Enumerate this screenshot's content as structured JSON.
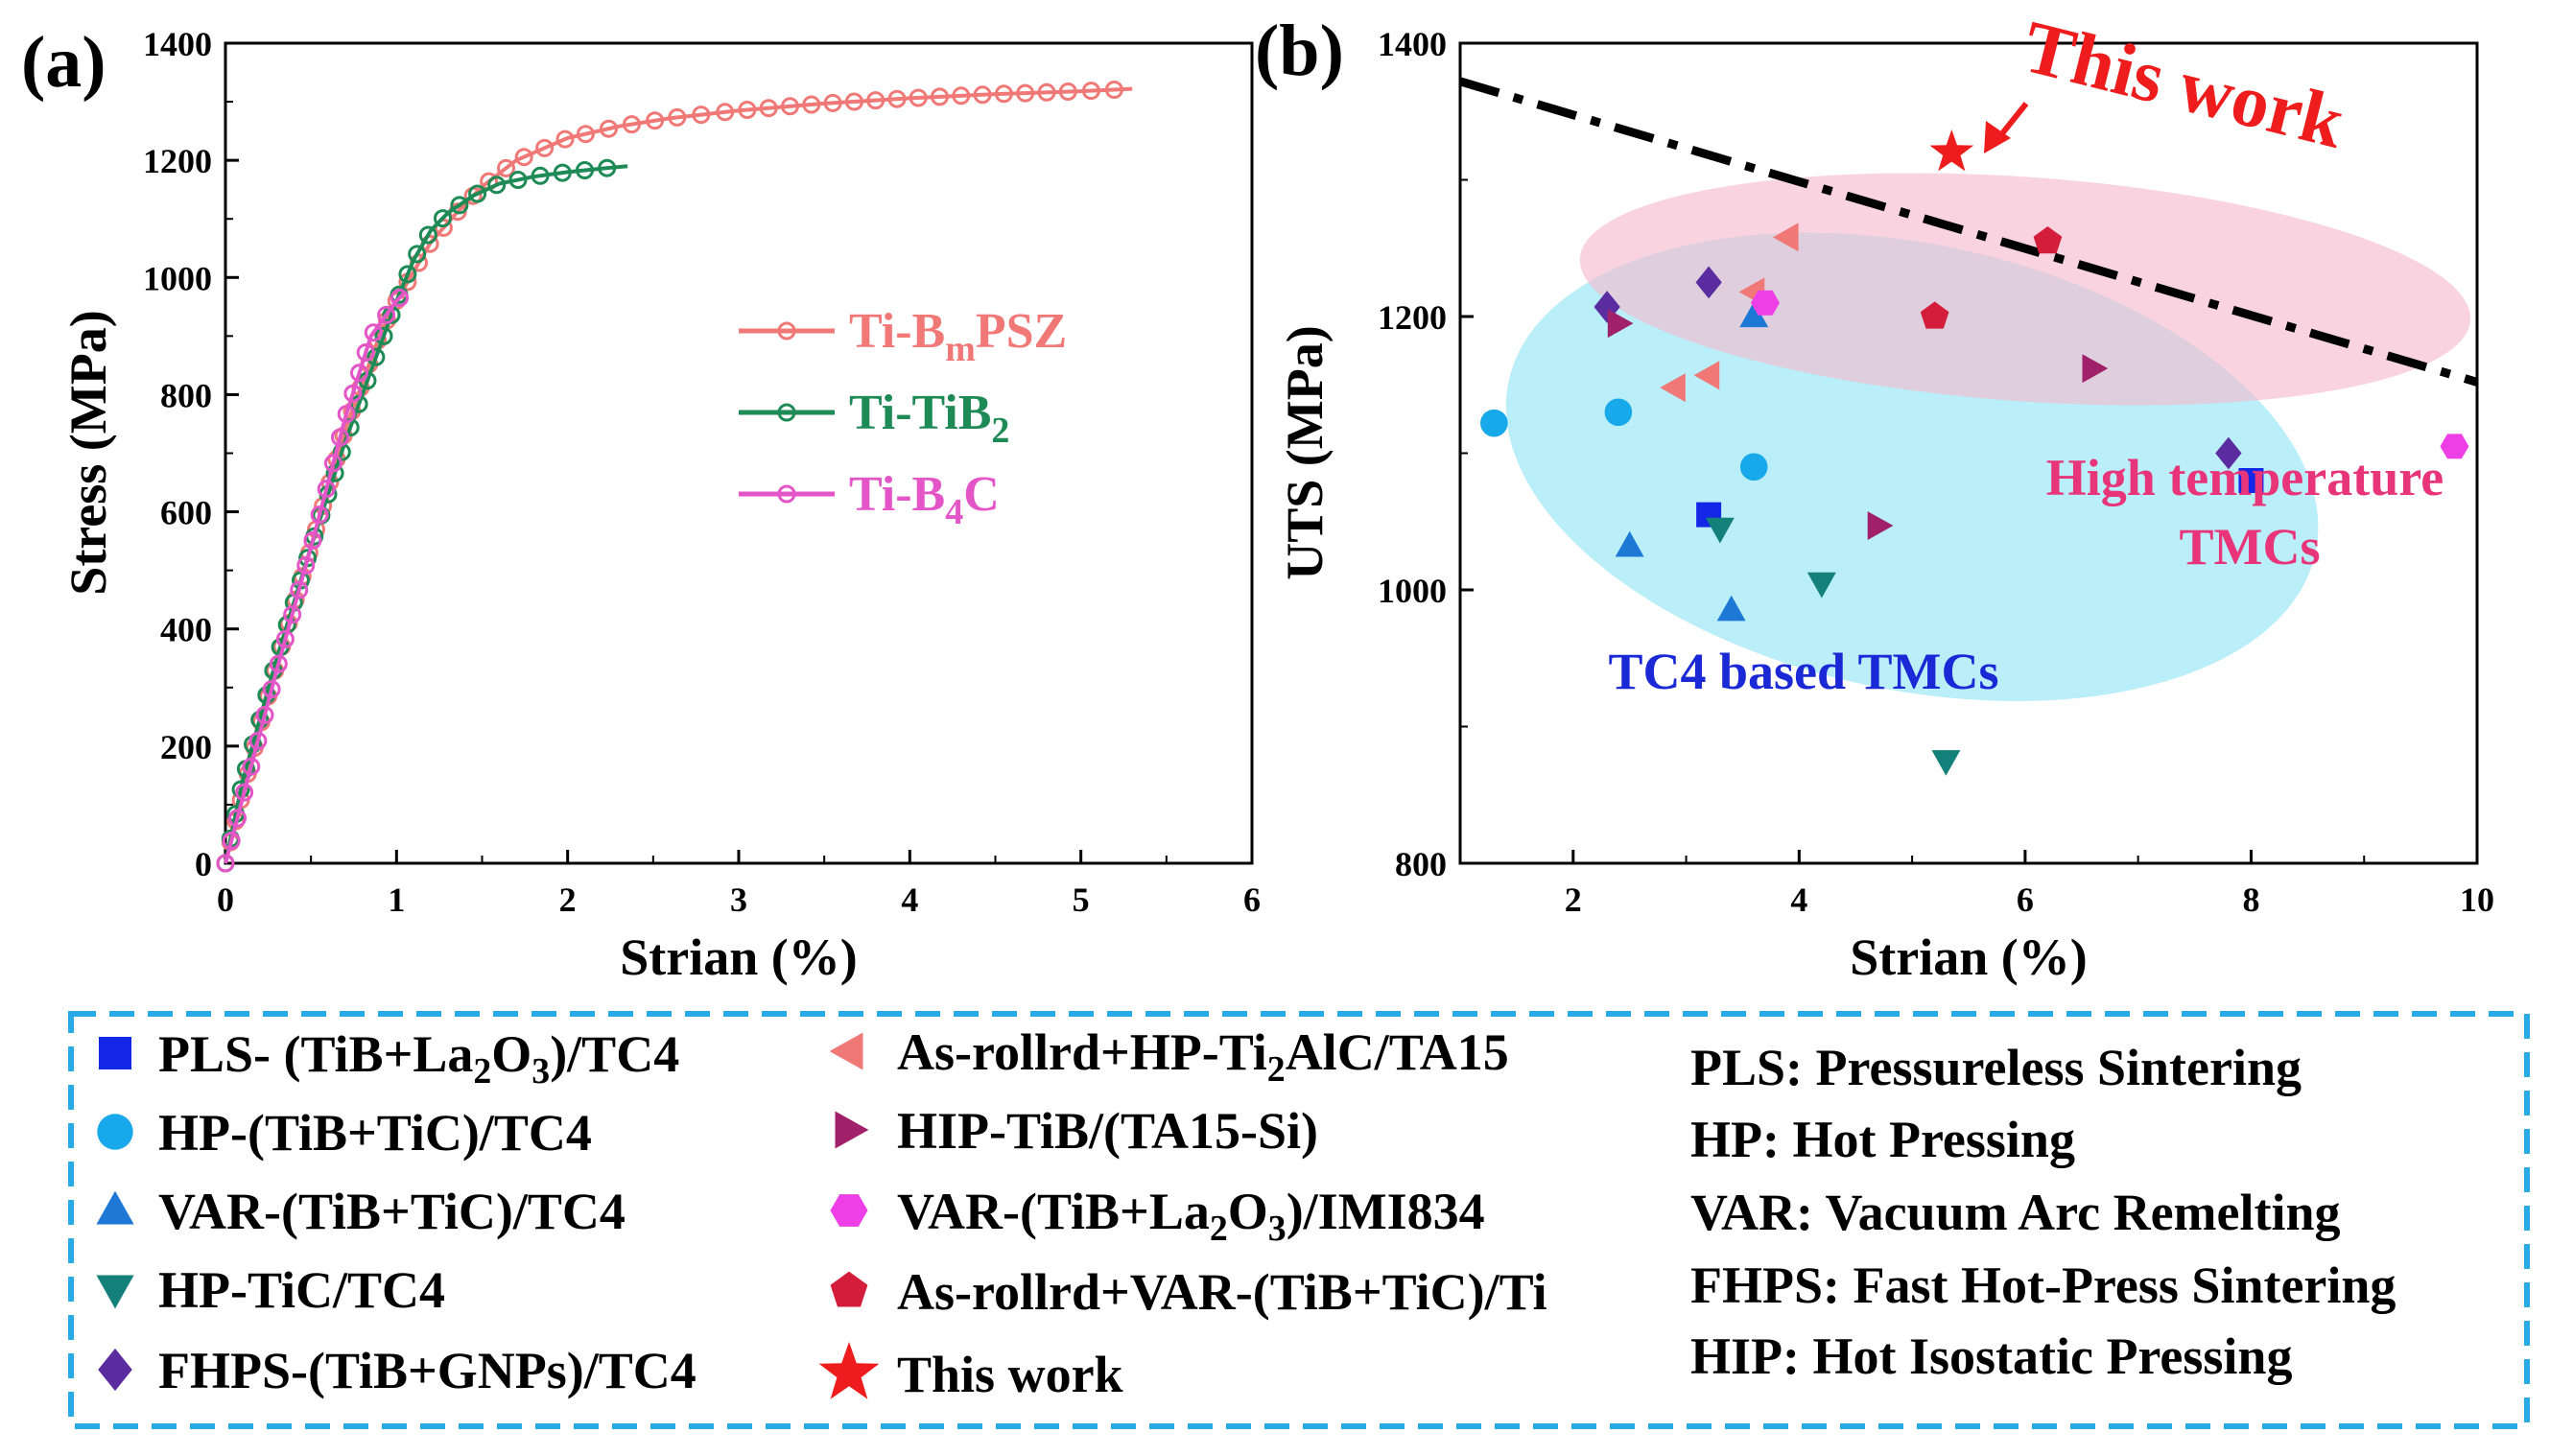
{
  "colors": {
    "ti_bmpsz": "#f07876",
    "ti_tib2": "#1e8a55",
    "ti_b4c": "#e455c8",
    "blue_square": "#1427e6",
    "cyan_circle": "#17a9ea",
    "tri_up": "#1d78d6",
    "tri_down": "#14807a",
    "diamond": "#5a2ca0",
    "tri_left": "#f07876",
    "tri_right": "#a0206a",
    "hexagon": "#ee3ee6",
    "pentagon": "#d41d3a",
    "star": "#ee1c1c",
    "ellipse_cyan": "#8fe3f3",
    "ellipse_pink": "#f6b9cd",
    "legend_border": "#29a9e6",
    "label_pink": "#e8357a",
    "label_blue": "#1a28d6"
  },
  "chart_data": [
    {
      "panel": "(a)",
      "type": "line",
      "title": "",
      "xlabel": "Strian (%)",
      "ylabel": "Stress (MPa)",
      "xlim": [
        0,
        6
      ],
      "ylim": [
        0,
        1400
      ],
      "xticks": [
        "0",
        "1",
        "2",
        "3",
        "4",
        "5",
        "6"
      ],
      "yticks": [
        "0",
        "200",
        "400",
        "600",
        "800",
        "1000",
        "1200",
        "1400"
      ],
      "legend": [
        {
          "key": "ti_bmpsz",
          "text": "Ti-B",
          "sub": "m",
          "tail": "PSZ"
        },
        {
          "key": "ti_tib2",
          "text": "Ti-TiB",
          "sub": "2",
          "tail": ""
        },
        {
          "key": "ti_b4c",
          "text": "Ti-B",
          "sub": "4",
          "tail": "C"
        }
      ],
      "series": [
        {
          "name": "Ti-BmPSZ",
          "color_key": "ti_bmpsz",
          "x": [
            0,
            0.1,
            0.3,
            0.5,
            0.7,
            0.9,
            1.0,
            1.1,
            1.2,
            1.35,
            1.5,
            1.7,
            2.0,
            2.3,
            2.6,
            3.0,
            3.5,
            4.0,
            4.5,
            5.0,
            5.3
          ],
          "y": [
            0,
            120,
            340,
            540,
            740,
            900,
            960,
            1010,
            1060,
            1110,
            1155,
            1200,
            1238,
            1258,
            1272,
            1285,
            1297,
            1306,
            1313,
            1318,
            1322
          ]
        },
        {
          "name": "Ti-TiB2",
          "color_key": "ti_tib2",
          "x": [
            0,
            0.1,
            0.3,
            0.5,
            0.7,
            0.9,
            1.0,
            1.1,
            1.2,
            1.3,
            1.45,
            1.6,
            1.8,
            2.0,
            2.2,
            2.35
          ],
          "y": [
            0,
            140,
            350,
            540,
            720,
            880,
            960,
            1030,
            1080,
            1110,
            1140,
            1160,
            1172,
            1180,
            1186,
            1190
          ]
        },
        {
          "name": "Ti-B4C",
          "color_key": "ti_b4c",
          "x": [
            0,
            0.1,
            0.3,
            0.5,
            0.7,
            0.85,
            1.0,
            1.05
          ],
          "y": [
            0,
            110,
            330,
            540,
            760,
            900,
            960,
            975
          ]
        }
      ]
    },
    {
      "panel": "(b)",
      "type": "scatter",
      "title": "",
      "xlabel": "Strian (%)",
      "ylabel": "UTS (MPa)",
      "xlim": [
        1.0,
        10.0
      ],
      "ylim": [
        800,
        1400
      ],
      "xticks": [
        "2",
        "4",
        "6",
        "8",
        "10"
      ],
      "yticks": [
        "800",
        "1000",
        "1200",
        "1400"
      ],
      "points": [
        {
          "series": "PLS- (TiB+La2O3)/TC4",
          "marker": "square",
          "color_key": "blue_square",
          "x": 3.2,
          "y": 1055
        },
        {
          "series": "PLS- (TiB+La2O3)/TC4",
          "marker": "square",
          "color_key": "blue_square",
          "x": 8.0,
          "y": 1080
        },
        {
          "series": "HP-(TiB+TiC)/TC4",
          "marker": "circle",
          "color_key": "cyan_circle",
          "x": 1.3,
          "y": 1122
        },
        {
          "series": "HP-(TiB+TiC)/TC4",
          "marker": "circle",
          "color_key": "cyan_circle",
          "x": 2.4,
          "y": 1130
        },
        {
          "series": "HP-(TiB+TiC)/TC4",
          "marker": "circle",
          "color_key": "cyan_circle",
          "x": 3.6,
          "y": 1090
        },
        {
          "series": "VAR-(TiB+TiC)/TC4",
          "marker": "tri-up",
          "color_key": "tri_up",
          "x": 2.5,
          "y": 1032
        },
        {
          "series": "VAR-(TiB+TiC)/TC4",
          "marker": "tri-up",
          "color_key": "tri_up",
          "x": 3.4,
          "y": 985
        },
        {
          "series": "VAR-(TiB+TiC)/TC4",
          "marker": "tri-up",
          "color_key": "tri_up",
          "x": 3.6,
          "y": 1200
        },
        {
          "series": "HP-TiC/TC4",
          "marker": "tri-down",
          "color_key": "tri_down",
          "x": 3.3,
          "y": 1045
        },
        {
          "series": "HP-TiC/TC4",
          "marker": "tri-down",
          "color_key": "tri_down",
          "x": 4.2,
          "y": 1005
        },
        {
          "series": "HP-TiC/TC4",
          "marker": "tri-down",
          "color_key": "tri_down",
          "x": 5.3,
          "y": 875
        },
        {
          "series": "FHPS-(TiB+GNPs)/TC4",
          "marker": "diamond",
          "color_key": "diamond",
          "x": 2.3,
          "y": 1207
        },
        {
          "series": "FHPS-(TiB+GNPs)/TC4",
          "marker": "diamond",
          "color_key": "diamond",
          "x": 3.2,
          "y": 1225
        },
        {
          "series": "FHPS-(TiB+GNPs)/TC4",
          "marker": "diamond",
          "color_key": "diamond",
          "x": 7.8,
          "y": 1100
        },
        {
          "series": "As-rollrd+HP-Ti2AlC/TA15",
          "marker": "tri-left",
          "color_key": "tri_left",
          "x": 2.9,
          "y": 1148
        },
        {
          "series": "As-rollrd+HP-Ti2AlC/TA15",
          "marker": "tri-left",
          "color_key": "tri_left",
          "x": 3.2,
          "y": 1157
        },
        {
          "series": "As-rollrd+HP-Ti2AlC/TA15",
          "marker": "tri-left",
          "color_key": "tri_left",
          "x": 3.6,
          "y": 1218
        },
        {
          "series": "As-rollrd+HP-Ti2AlC/TA15",
          "marker": "tri-left",
          "color_key": "tri_left",
          "x": 3.9,
          "y": 1258
        },
        {
          "series": "HIP-TiB/(TA15-Si)",
          "marker": "tri-right",
          "color_key": "tri_right",
          "x": 2.4,
          "y": 1195
        },
        {
          "series": "HIP-TiB/(TA15-Si)",
          "marker": "tri-right",
          "color_key": "tri_right",
          "x": 4.7,
          "y": 1047
        },
        {
          "series": "HIP-TiB/(TA15-Si)",
          "marker": "tri-right",
          "color_key": "tri_right",
          "x": 6.6,
          "y": 1162
        },
        {
          "series": "VAR-(TiB+La2O3)/IMI834",
          "marker": "hexagon",
          "color_key": "hexagon",
          "x": 3.7,
          "y": 1210
        },
        {
          "series": "VAR-(TiB+La2O3)/IMI834",
          "marker": "hexagon",
          "color_key": "hexagon",
          "x": 9.8,
          "y": 1105
        },
        {
          "series": "As-rollrd+VAR-(TiB+TiC)/Ti",
          "marker": "pentagon",
          "color_key": "pentagon",
          "x": 5.2,
          "y": 1200
        },
        {
          "series": "As-rollrd+VAR-(TiB+TiC)/Ti",
          "marker": "pentagon",
          "color_key": "pentagon",
          "x": 6.2,
          "y": 1255
        },
        {
          "series": "This work",
          "marker": "star",
          "color_key": "star",
          "x": 5.35,
          "y": 1320
        }
      ],
      "trend_line": {
        "x": [
          1.0,
          10.0
        ],
        "y": [
          1372,
          1152
        ],
        "style": "dash-dot"
      },
      "regions": [
        {
          "name": "TC4 based TMCs",
          "color_key": "ellipse_cyan",
          "cx": 5.0,
          "cy": 1090,
          "rx": 3.65,
          "ry": 163,
          "rotate": 12
        },
        {
          "name": "High temperature TMCs",
          "color_key": "ellipse_pink",
          "cx": 6.0,
          "cy": 1220,
          "rx": 3.95,
          "ry": 82,
          "rotate": 4
        }
      ],
      "annotations": {
        "this_work": "This work",
        "high_temp_line1": "High temperature",
        "high_temp_line2": "TMCs",
        "tc4": "TC4 based TMCs"
      }
    }
  ],
  "legend_box": {
    "col1": [
      {
        "marker": "square",
        "color_key": "blue_square",
        "pre": "PLS- (TiB+La",
        "sub": "2",
        "mid": "O",
        "sub2": "3",
        "post": ")/TC4"
      },
      {
        "marker": "circle",
        "color_key": "cyan_circle",
        "pre": "HP-(TiB+TiC)/TC4"
      },
      {
        "marker": "tri-up",
        "color_key": "tri_up",
        "pre": "VAR-(TiB+TiC)/TC4"
      },
      {
        "marker": "tri-down",
        "color_key": "tri_down",
        "pre": "HP-TiC/TC4"
      },
      {
        "marker": "diamond",
        "color_key": "diamond",
        "pre": "FHPS-(TiB+GNPs)/TC4"
      }
    ],
    "col2": [
      {
        "marker": "tri-left",
        "color_key": "tri_left",
        "pre": "As-rollrd+HP-Ti",
        "sub": "2",
        "post": "AlC/TA15"
      },
      {
        "marker": "tri-right",
        "color_key": "tri_right",
        "pre": "HIP-TiB/(TA15-Si)"
      },
      {
        "marker": "hexagon",
        "color_key": "hexagon",
        "pre": "VAR-(TiB+La",
        "sub": "2",
        "mid": "O",
        "sub2": "3",
        "post": ")/IMI834"
      },
      {
        "marker": "pentagon",
        "color_key": "pentagon",
        "pre": "As-rollrd+VAR-(TiB+TiC)/Ti"
      },
      {
        "marker": "star",
        "color_key": "star",
        "pre": "This work"
      }
    ],
    "abbreviations": [
      "PLS: Pressureless Sintering",
      "HP: Hot Pressing",
      "VAR: Vacuum Arc Remelting",
      "FHPS: Fast Hot-Press Sintering",
      "HIP: Hot Isostatic Pressing"
    ]
  },
  "panel_labels": {
    "a": "(a)",
    "b": "(b)"
  }
}
